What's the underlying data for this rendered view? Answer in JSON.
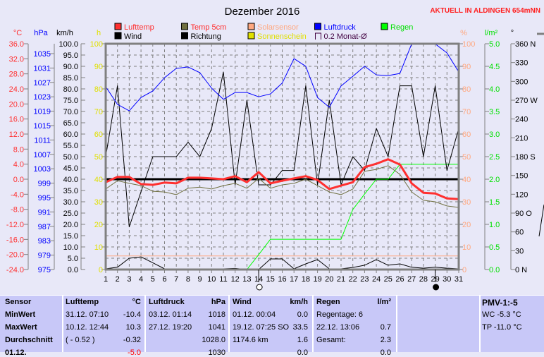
{
  "header": {
    "title": "Dezember 2016",
    "station": "AKTUELL IN ALDINGEN 654mNN"
  },
  "legend": [
    {
      "label": "Lufttemp",
      "color": "#ff3030",
      "text_color": "#ff3030"
    },
    {
      "label": "Temp 5cm",
      "color": "#707040",
      "text_color": "#ff3030"
    },
    {
      "label": "Solarsensor",
      "color": "#ffa880",
      "text_color": "#ffa880"
    },
    {
      "label": "Luftdruck",
      "color": "#0000ff",
      "text_color": "#0000ff"
    },
    {
      "label": "Regen",
      "color": "#00ff00",
      "text_color": "#00e000"
    },
    {
      "label": "Wind",
      "color": "#000000",
      "text_color": "#000000"
    },
    {
      "label": "Richtung",
      "color": "#000000",
      "text_color": "#000000"
    },
    {
      "label": "Sonnenschein",
      "color": "#e0e000",
      "text_color": "#e0e000"
    },
    {
      "label": "0.2 Monat-Ø",
      "color": "none",
      "text_color": "#400040"
    }
  ],
  "axes": {
    "temp": {
      "unit": "°C",
      "color": "#ff3030",
      "ticks": [
        "36.0",
        "32.0",
        "28.0",
        "24.0",
        "20.0",
        "16.0",
        "12.0",
        "8.0",
        "4.0",
        "0.0",
        "-4.0",
        "-8.0",
        "-12.0",
        "-16.0",
        "-20.0",
        "-24.0"
      ]
    },
    "pressure": {
      "unit": "hPa",
      "color": "#0000ff",
      "ticks": [
        "1035",
        "1031",
        "1027",
        "1023",
        "1019",
        "1015",
        "1011",
        "1007",
        "1003",
        "999",
        "995",
        "991",
        "987",
        "983",
        "979",
        "975"
      ]
    },
    "wind": {
      "unit": "km/h",
      "color": "#000000",
      "ticks": [
        "100.0",
        "95.0",
        "90.0",
        "85.0",
        "80.0",
        "75.0",
        "70.0",
        "65.0",
        "60.0",
        "55.0",
        "50.0",
        "45.0",
        "40.0",
        "35.0",
        "30.0",
        "25.0",
        "20.0",
        "15.0",
        "10.0",
        "5.0",
        "0.0"
      ]
    },
    "sun": {
      "unit": "h",
      "color": "#e0e000",
      "ticks": [
        "100",
        "90",
        "80",
        "70",
        "60",
        "50",
        "40",
        "30",
        "20",
        "10",
        "0"
      ]
    },
    "percent": {
      "unit": "%",
      "color": "#ffa880",
      "ticks": [
        "100",
        "90",
        "80",
        "70",
        "60",
        "50",
        "40",
        "30",
        "20",
        "10",
        "0"
      ]
    },
    "rain": {
      "unit": "l/m²",
      "color": "#00e000",
      "ticks": [
        "5.0",
        "4.5",
        "4.0",
        "3.5",
        "3.0",
        "2.5",
        "2.0",
        "1.5",
        "1.0",
        "0.5",
        "0.0"
      ]
    },
    "direction": {
      "unit": "°",
      "color": "#000000",
      "ticks": [
        "360 N",
        "330",
        "300",
        "270 W",
        "240",
        "210",
        "180 S",
        "150",
        "120",
        "90 O",
        "60",
        "30",
        "0 N"
      ]
    }
  },
  "chart_data": {
    "type": "line",
    "title": "Dezember 2016",
    "x": [
      1,
      2,
      3,
      4,
      5,
      6,
      7,
      8,
      9,
      10,
      11,
      12,
      13,
      14,
      15,
      16,
      17,
      18,
      19,
      20,
      21,
      22,
      23,
      24,
      25,
      26,
      27,
      28,
      29,
      30,
      31
    ],
    "xlim": [
      1,
      31
    ],
    "grid": true,
    "series": [
      {
        "name": "Lufttemp",
        "unit": "°C",
        "axis": "temp",
        "values": [
          -0.8,
          0.6,
          0.6,
          -1.3,
          -1.5,
          -0.9,
          -1.1,
          0.4,
          0.4,
          0.2,
          0.0,
          0.8,
          -0.8,
          1.9,
          -1.1,
          -0.4,
          0.2,
          0.8,
          -0.2,
          -2.6,
          -1.7,
          -0.8,
          3.2,
          4.1,
          5.3,
          3.9,
          -1.1,
          -3.6,
          -3.8,
          -5.1,
          -5.3
        ]
      },
      {
        "name": "Temp 5cm",
        "unit": "°C",
        "axis": "temp",
        "values": [
          -2.6,
          -0.4,
          -1.1,
          -1.7,
          -3.2,
          -3.4,
          -4.1,
          -2.4,
          -2.1,
          -2.6,
          -1.7,
          -1.1,
          -2.4,
          0.2,
          -2.4,
          -1.5,
          -1.1,
          0.0,
          -1.7,
          -3.4,
          -4.1,
          -2.6,
          2.1,
          2.6,
          3.6,
          1.3,
          -3.4,
          -5.6,
          -6.0,
          -7.1,
          -7.5
        ]
      },
      {
        "name": "Luftdruck",
        "unit": "hPa",
        "axis": "pressure",
        "values": [
          1025.8,
          1020.9,
          1019.1,
          1022.8,
          1024.6,
          1028.3,
          1030.9,
          1031.3,
          1029.7,
          1025.4,
          1022.3,
          1024.2,
          1024.2,
          1023.0,
          1023.8,
          1026.8,
          1033.6,
          1031.5,
          1022.8,
          1020.1,
          1026.0,
          1028.7,
          1031.5,
          1029.1,
          1028.9,
          1029.5,
          1037.7,
          1040.0,
          1037.7,
          1035.2,
          1029.9
        ]
      },
      {
        "name": "Wind",
        "unit": "km/h",
        "axis": "wind",
        "values": [
          0.3,
          1.0,
          5.0,
          5.6,
          3.0,
          0.3,
          0.3,
          0.3,
          0.3,
          0.3,
          0.3,
          0.5,
          0.0,
          0.0,
          4.7,
          4.7,
          0.3,
          2.5,
          4.4,
          0.3,
          0.3,
          0.9,
          1.9,
          4.4,
          1.9,
          2.5,
          1.0,
          0.6,
          1.0,
          0.6,
          0.3
        ]
      },
      {
        "name": "Richtung",
        "unit": "°",
        "axis": "direction",
        "values": [
          180,
          293,
          68,
          124,
          180,
          180,
          180,
          203,
          180,
          225,
          315,
          135,
          270,
          135,
          135,
          158,
          158,
          293,
          135,
          270,
          135,
          180,
          158,
          225,
          180,
          293,
          293,
          180,
          293,
          158,
          225
        ]
      },
      {
        "name": "Regen",
        "unit": "l/m²",
        "axis": "rain",
        "cumulative": true,
        "values": [
          0,
          0,
          0,
          0,
          0,
          0,
          0,
          0,
          0,
          0,
          0,
          0,
          0,
          0.33,
          0.67,
          0.67,
          0.67,
          0.67,
          0.67,
          0.67,
          0.67,
          1.33,
          1.67,
          2.0,
          2.0,
          2.33,
          2.33,
          2.33,
          2.33,
          2.33,
          2.33
        ]
      },
      {
        "name": "Solarsensor",
        "unit": "%",
        "axis": "percent",
        "values": [
          6,
          6,
          6,
          6,
          6,
          6,
          6,
          6,
          6,
          6,
          6,
          6,
          6,
          6,
          6,
          6,
          6,
          6,
          6,
          6,
          6,
          6,
          6,
          6,
          6,
          6,
          6,
          6,
          6,
          6,
          6
        ]
      },
      {
        "name": "Sonnenschein",
        "unit": "h",
        "axis": "sun",
        "values": [
          0,
          0,
          0,
          0,
          0,
          0,
          0,
          0,
          0,
          0,
          0,
          0,
          0,
          0,
          0,
          0,
          0,
          0,
          0,
          0,
          0,
          0,
          0,
          0,
          0,
          0,
          0,
          0,
          0,
          0,
          0
        ]
      }
    ],
    "reference_line": {
      "name": "0 °C",
      "value": 0,
      "axis": "temp"
    },
    "moon_phases": [
      {
        "day": 14,
        "phase": "full-moon"
      },
      {
        "day": 29,
        "phase": "new-moon"
      }
    ]
  },
  "table": {
    "headers": {
      "sensor": "Sensor",
      "temp": "Lufttemp",
      "temp_unit": "°C",
      "press": "Luftdruck",
      "press_unit": "hPa",
      "wind": "Wind",
      "wind_unit": "km/h",
      "rain": "Regen",
      "rain_unit": "l/m²",
      "pmv": "PMV-1:-5"
    },
    "rows": [
      {
        "label": "MinWert",
        "temp_time": "31.12.  07:10",
        "temp_val": "-10.4",
        "press_time": "03.12.  01:14",
        "press_val": "1018",
        "wind_time": "01.12.  00:04",
        "wind_val": "0.0",
        "rain_text": "Regentage: 6",
        "rain_val": "",
        "pmv": "WC -5.3 °C"
      },
      {
        "label": "MaxWert",
        "temp_time": "10.12.  12:44",
        "temp_val": "10.3",
        "press_time": "27.12.  19:20",
        "press_val": "1041",
        "wind_time": "19.12.  07:25 SO",
        "wind_val": "33.5",
        "rain_text": "22.12.  13:06",
        "rain_val": "0.7",
        "pmv": "TP -11.0 °C"
      },
      {
        "label": "Durchschnitt",
        "temp_time": "( - 0.52 )",
        "temp_val": "-0.32",
        "press_time": "",
        "press_val": "1028.0",
        "wind_time": "1174.6 km",
        "wind_val": "1.6",
        "rain_text": "Gesamt:",
        "rain_val": "2.3",
        "pmv": ""
      },
      {
        "label": "01.12.",
        "temp_time": "",
        "temp_val": "-5.0",
        "press_time": "",
        "press_val": "1030",
        "wind_time": "",
        "wind_val": "0.0",
        "rain_text": "",
        "rain_val": "0.0",
        "pmv": ""
      }
    ]
  }
}
